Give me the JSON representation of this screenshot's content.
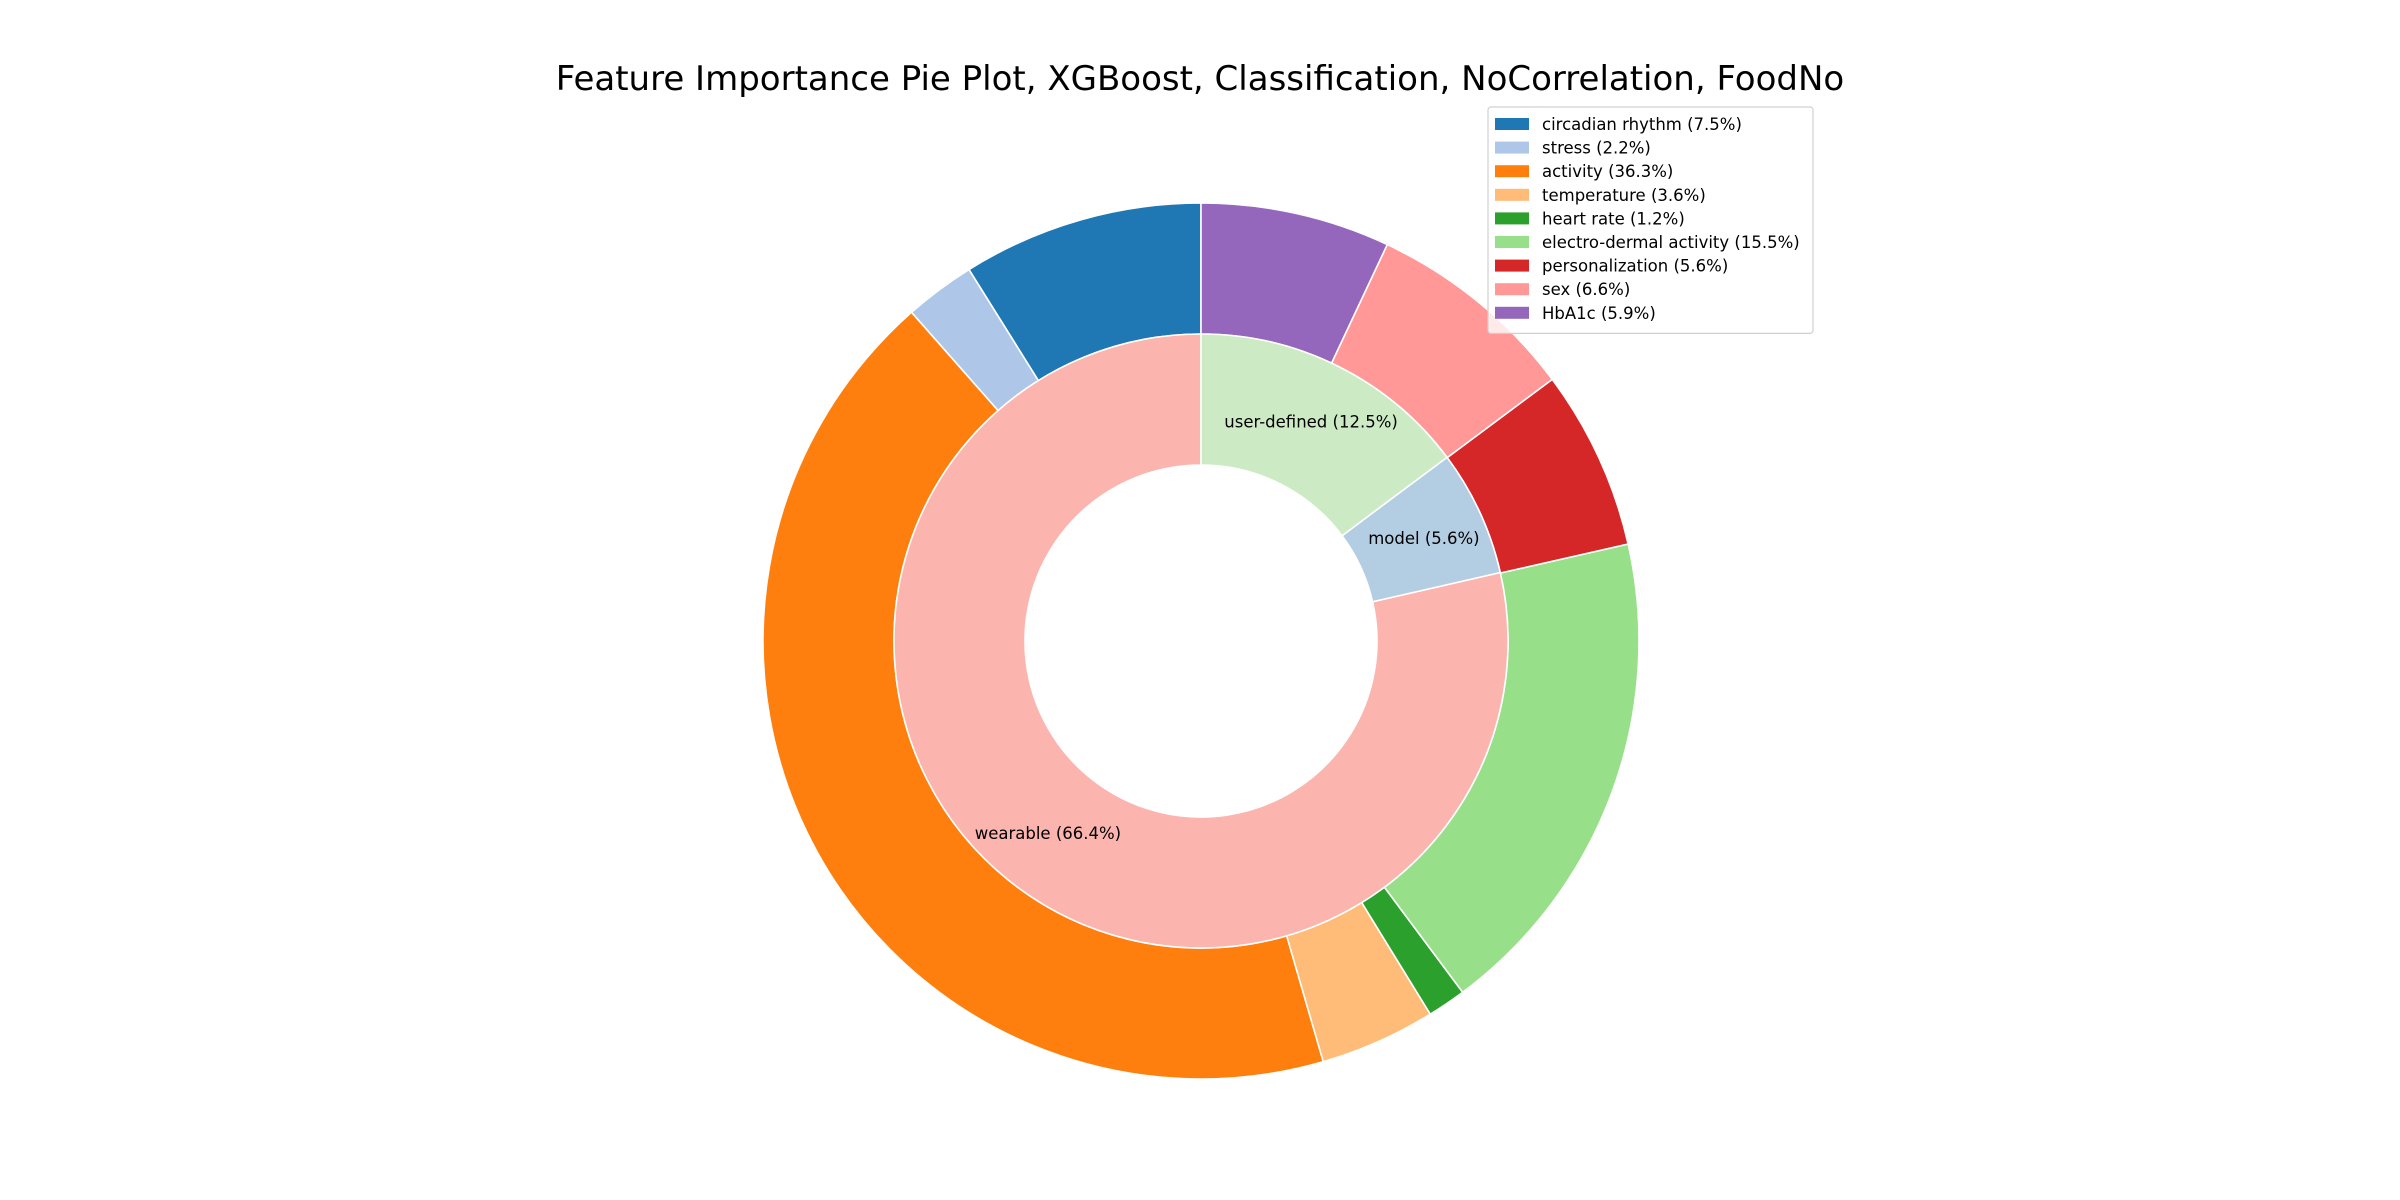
{
  "chart_data": {
    "type": "pie",
    "title": "Feature Importance Pie Plot, XGBoost, Classification, NoCorrelation, FoodNo",
    "legend_position": "top-right",
    "outer_ring": {
      "start_angle_deg": 90,
      "direction": "counterclockwise",
      "slices": [
        {
          "name": "circadian rhythm",
          "percent": 7.5,
          "legend_label": "circadian rhythm (7.5%)",
          "color": "#1f77b4"
        },
        {
          "name": "stress",
          "percent": 2.2,
          "legend_label": "stress (2.2%)",
          "color": "#aec7e8"
        },
        {
          "name": "activity",
          "percent": 36.3,
          "legend_label": "activity (36.3%)",
          "color": "#ff7f0e"
        },
        {
          "name": "temperature",
          "percent": 3.6,
          "legend_label": "temperature (3.6%)",
          "color": "#ffbb78"
        },
        {
          "name": "heart rate",
          "percent": 1.2,
          "legend_label": "heart rate (1.2%)",
          "color": "#2ca02c"
        },
        {
          "name": "electro-dermal activity",
          "percent": 15.5,
          "legend_label": "electro-dermal activity (15.5%)",
          "color": "#98df8a"
        },
        {
          "name": "personalization",
          "percent": 5.6,
          "legend_label": "personalization (5.6%)",
          "color": "#d62728"
        },
        {
          "name": "sex",
          "percent": 6.6,
          "legend_label": "sex (6.6%)",
          "color": "#ff9896"
        },
        {
          "name": "HbA1c",
          "percent": 5.9,
          "legend_label": "HbA1c (5.9%)",
          "color": "#9467bd"
        }
      ]
    },
    "inner_ring": {
      "start_angle_deg": 90,
      "direction": "counterclockwise",
      "slices": [
        {
          "name": "wearable",
          "percent": 66.4,
          "label": "wearable (66.4%)",
          "color": "#fbb4ae"
        },
        {
          "name": "model",
          "percent": 5.6,
          "label": "model (5.6%)",
          "color": "#b3cde3"
        },
        {
          "name": "user-defined",
          "percent": 12.5,
          "label": "user-defined (12.5%)",
          "color": "#ccebc5"
        }
      ]
    }
  }
}
